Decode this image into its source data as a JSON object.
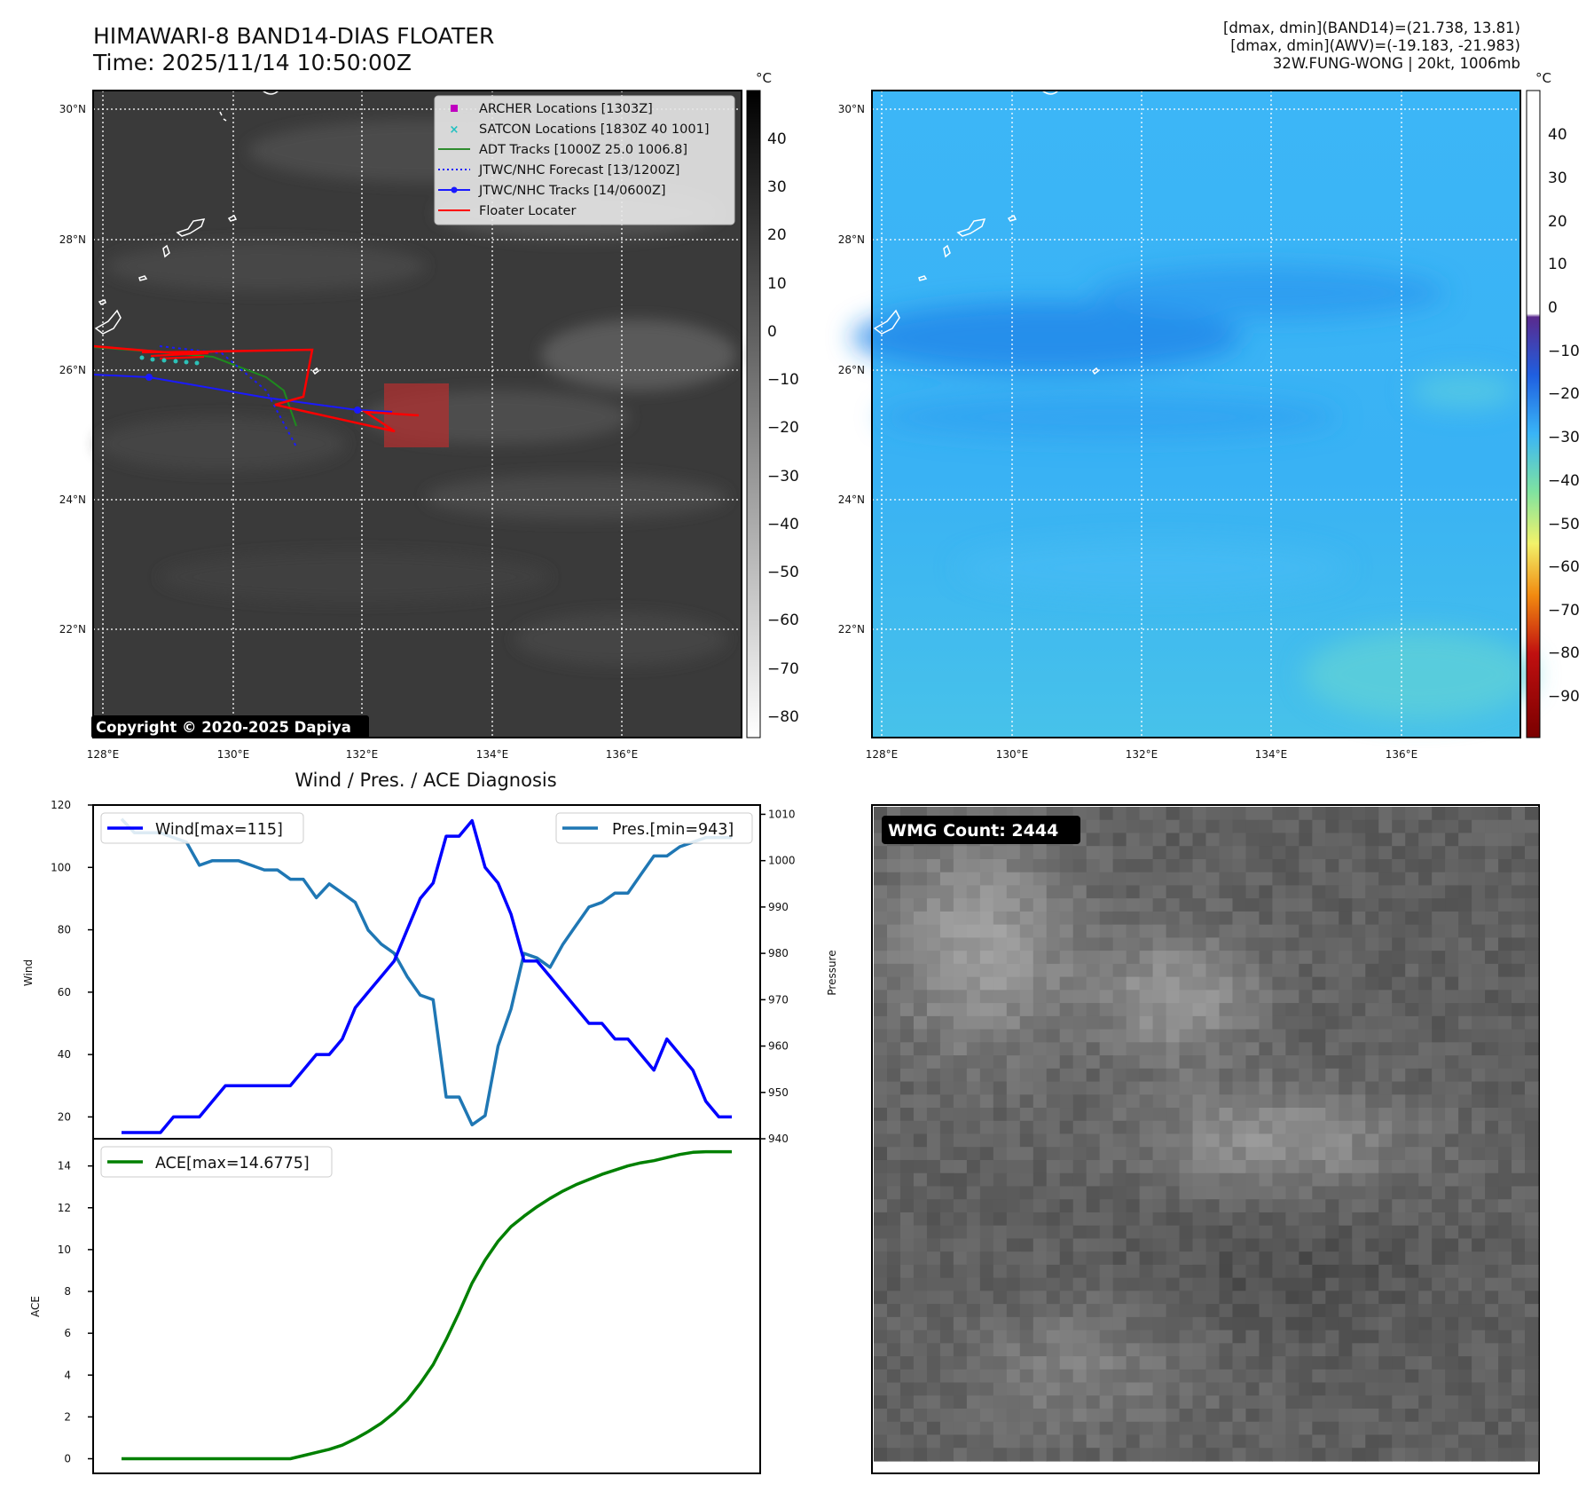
{
  "header": {
    "title": "HIMAWARI-8 BAND14-DIAS FLOATER",
    "time": "Time: 2025/11/14 10:50:00Z",
    "info_band14": "[dmax, dmin](BAND14)=(21.738, 13.81)",
    "info_awv": "[dmax, dmin](AWV)=(-19.183, -21.983)",
    "info_storm": "32W.FUNG-WONG | 20kt, 1006mb"
  },
  "colors": {
    "gray_map_bg": "#3a3a3a",
    "awv_map_bg": "#38b0f4",
    "wind": "#0000ff",
    "pressure": "#1f77b4",
    "ace": "#008000",
    "floater": "#ff0000",
    "archer": "#c000c0",
    "satcon": "#20c0c0",
    "adt": "#2e8b2e",
    "jtwc": "#1a1aff"
  },
  "map_gray": {
    "cbar_unit": "°C",
    "copyright": "Copyright © 2020-2025 Dapiya",
    "lat_labels": [
      "30°N",
      "28°N",
      "26°N",
      "24°N",
      "22°N"
    ],
    "lon_labels": [
      "128°E",
      "130°E",
      "132°E",
      "134°E",
      "136°E"
    ],
    "cbar_ticks": [
      "40",
      "30",
      "20",
      "10",
      "0",
      "−10",
      "−20",
      "−30",
      "−40",
      "−50",
      "−60",
      "−70",
      "−80"
    ],
    "legend": [
      {
        "label": "ARCHER Locations [1303Z]",
        "icon": "magenta-square-icon"
      },
      {
        "label": "SATCON Locations [1830Z 40 1001]",
        "icon": "cyan-x-icon"
      },
      {
        "label": "ADT Tracks [1000Z 25.0 1006.8]",
        "icon": "green-line-icon"
      },
      {
        "label": "JTWC/NHC Forecast [13/1200Z]",
        "icon": "blue-dotted-line-icon"
      },
      {
        "label": "JTWC/NHC Tracks [14/0600Z]",
        "icon": "blue-line-dot-icon"
      },
      {
        "label": "Floater Locater",
        "icon": "red-line-icon"
      }
    ]
  },
  "map_awv": {
    "cbar_unit": "°C",
    "lat_labels": [
      "30°N",
      "28°N",
      "26°N",
      "24°N",
      "22°N"
    ],
    "lon_labels": [
      "128°E",
      "130°E",
      "132°E",
      "134°E",
      "136°E"
    ],
    "cbar_ticks": [
      "40",
      "30",
      "20",
      "10",
      "0",
      "−10",
      "−20",
      "−30",
      "−40",
      "−50",
      "−60",
      "−70",
      "−80",
      "−90"
    ]
  },
  "diagnosis": {
    "title": "Wind / Pres. / ACE Diagnosis",
    "wind_ylabel": "Wind",
    "pres_ylabel": "Pressure",
    "ace_ylabel": "ACE",
    "wind_legend": "Wind[max=115]",
    "pres_legend": "Pres.[min=943]",
    "ace_legend": "ACE[max=14.6775]",
    "wind_ticks": [
      "20",
      "40",
      "60",
      "80",
      "100",
      "120"
    ],
    "pres_ticks": [
      "940",
      "950",
      "960",
      "970",
      "980",
      "990",
      "1000",
      "1010"
    ],
    "ace_ticks": [
      "0",
      "2",
      "4",
      "6",
      "8",
      "10",
      "12",
      "14"
    ]
  },
  "wmg": {
    "label": "WMG Count: 2444"
  },
  "chart_data": [
    {
      "type": "line",
      "title": "Wind / Pres. / ACE Diagnosis",
      "ylabel": "Wind",
      "ylim": [
        13,
        120
      ],
      "series": [
        {
          "name": "Wind[max=115]",
          "axis": "left",
          "values": [
            15,
            15,
            15,
            15,
            20,
            20,
            20,
            25,
            30,
            30,
            30,
            30,
            30,
            30,
            35,
            40,
            40,
            45,
            55,
            60,
            65,
            70,
            80,
            90,
            95,
            110,
            110,
            115,
            100,
            95,
            85,
            70,
            70,
            65,
            60,
            55,
            50,
            50,
            45,
            45,
            40,
            35,
            45,
            40,
            35,
            25,
            20,
            20
          ]
        },
        {
          "name": "Pres.[min=943]",
          "axis": "right",
          "ylim": [
            940,
            1012
          ],
          "values": [
            1009,
            1006,
            1006,
            1006,
            1005,
            1004,
            999,
            1000,
            1000,
            1000,
            999,
            998,
            998,
            996,
            996,
            992,
            995,
            993,
            991,
            985,
            982,
            980,
            975,
            971,
            970,
            949,
            949,
            943,
            945,
            960,
            968,
            980,
            979,
            977,
            982,
            986,
            990,
            991,
            993,
            993,
            997,
            1001,
            1001,
            1003,
            1004,
            1005,
            1005,
            1005
          ]
        }
      ]
    },
    {
      "type": "line",
      "ylabel": "ACE",
      "ylim": [
        -0.7,
        15.3
      ],
      "series": [
        {
          "name": "ACE[max=14.6775]",
          "values": [
            0,
            0,
            0,
            0,
            0,
            0,
            0,
            0,
            0,
            0,
            0,
            0,
            0,
            0,
            0.15,
            0.3,
            0.45,
            0.65,
            0.95,
            1.3,
            1.7,
            2.2,
            2.8,
            3.6,
            4.5,
            5.7,
            7.0,
            8.4,
            9.5,
            10.4,
            11.1,
            11.6,
            12.05,
            12.45,
            12.8,
            13.1,
            13.35,
            13.6,
            13.8,
            14.0,
            14.15,
            14.25,
            14.4,
            14.55,
            14.65,
            14.68,
            14.68,
            14.68
          ]
        }
      ]
    }
  ]
}
